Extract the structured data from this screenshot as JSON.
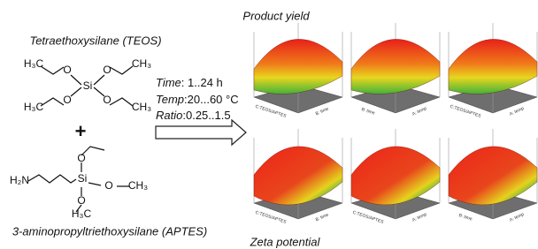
{
  "reaction": {
    "teos": {
      "name": "Tetraethoxysilane (TEOS)",
      "atoms": [
        "H₃C",
        "O",
        "Si",
        "O",
        "CH₃",
        "H₃C",
        "O",
        "O",
        "CH₃"
      ]
    },
    "plus": "+",
    "conditions": [
      {
        "label": "Time",
        "range": ": 1..24 h"
      },
      {
        "label": "Temp",
        "range": ":20...60 °C"
      },
      {
        "label": "Ratio",
        "range": ":0.25..1.5"
      }
    ],
    "aptes": {
      "name": "3-aminopropyltriethoxysilane (APTES)",
      "atoms": [
        "H₂N",
        "Si",
        "O",
        "O",
        "CH₃",
        "O",
        "H₃C"
      ]
    }
  },
  "plots": {
    "top_title": "Product yield",
    "bottom_title": "Zeta potential",
    "panels": [
      {
        "axis_labels": [
          "C:TEOS/APTES",
          "B: time"
        ]
      },
      {
        "axis_labels": [
          "B: time",
          "A: temp"
        ]
      },
      {
        "axis_labels": [
          "C:TEOS/APTES",
          "A: temp"
        ]
      },
      {
        "axis_labels": [
          "C:TEOS/APTES",
          "B: time"
        ]
      },
      {
        "axis_labels": [
          "C:TEOS/APTES",
          "A: temp"
        ]
      },
      {
        "axis_labels": [
          "B: time",
          "A: temp"
        ]
      }
    ]
  }
}
